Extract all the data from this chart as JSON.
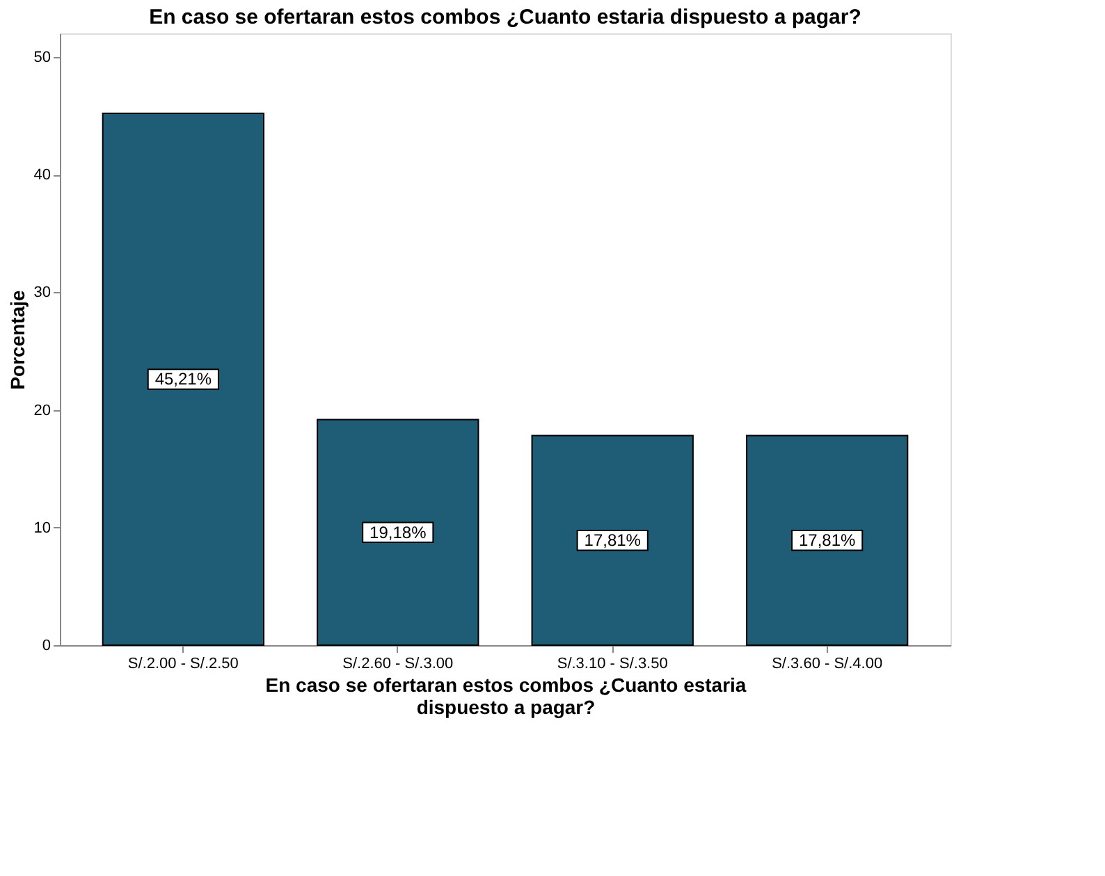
{
  "chart_data": {
    "type": "bar",
    "title": "En caso se ofertaran estos combos ¿Cuanto estaria dispuesto a pagar?",
    "xlabel": "En caso se ofertaran estos combos ¿Cuanto estaria dispuesto a pagar?",
    "ylabel": "Porcentaje",
    "categories": [
      "S/.2.00 - S/.2.50",
      "S/.2.60 - S/.3.00",
      "S/.3.10 - S/.3.50",
      "S/.3.60 - S/.4.00"
    ],
    "values": [
      45.21,
      19.18,
      17.81,
      17.81
    ],
    "value_labels": [
      "45,21%",
      "19,18%",
      "17,81%",
      "17,81%"
    ],
    "color": "#1f5c75",
    "ylim": [
      0,
      52
    ],
    "yticks": [
      0,
      10,
      20,
      30,
      40,
      50
    ],
    "grid": false
  }
}
